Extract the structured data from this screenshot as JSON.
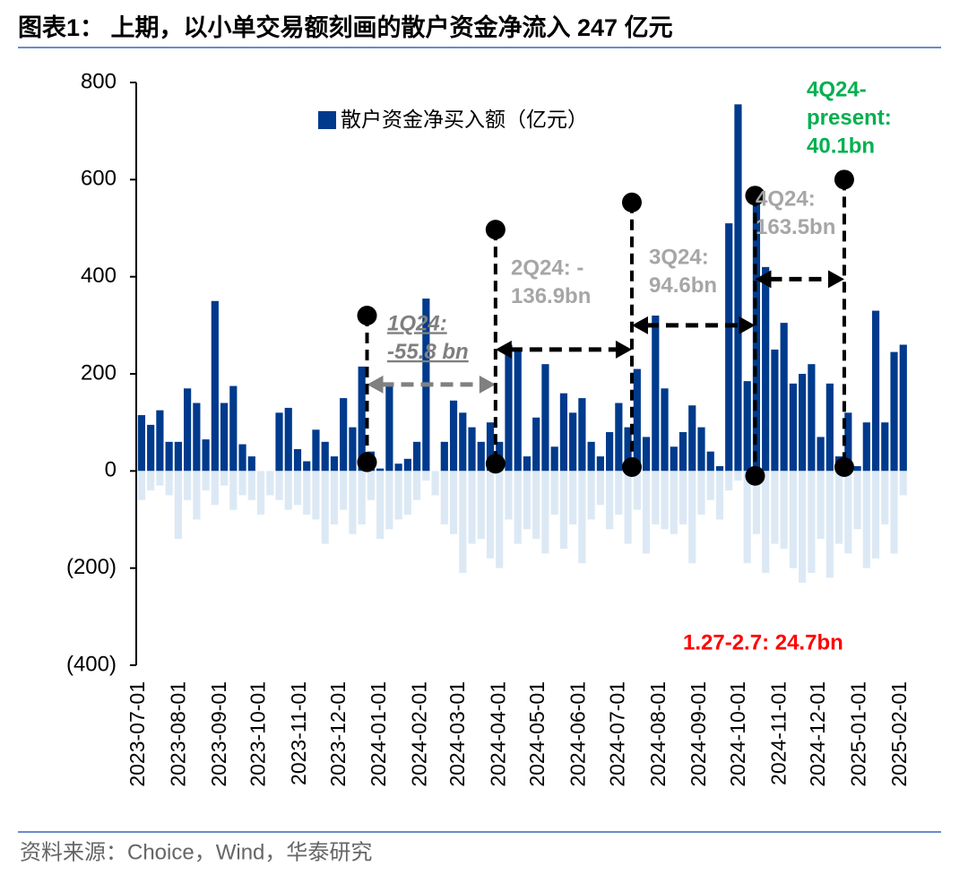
{
  "chart_data": {
    "type": "bar",
    "title": "图表1：  上期，以小单交易额刻画的散户资金净流入 247 亿元",
    "source": "资料来源：Choice，Wind，华泰研究",
    "x": [
      "2023-07-03",
      "2023-07-10",
      "2023-07-17",
      "2023-07-24",
      "2023-07-31",
      "2023-08-07",
      "2023-08-14",
      "2023-08-21",
      "2023-08-28",
      "2023-09-04",
      "2023-09-11",
      "2023-09-18",
      "2023-09-25",
      "2023-10-02",
      "2023-10-09",
      "2023-10-16",
      "2023-10-23",
      "2023-10-30",
      "2023-11-06",
      "2023-11-13",
      "2023-11-20",
      "2023-11-27",
      "2023-12-04",
      "2023-12-11",
      "2023-12-18",
      "2023-12-25",
      "2024-01-01",
      "2024-01-08",
      "2024-01-15",
      "2024-01-22",
      "2024-01-29",
      "2024-02-05",
      "2024-02-12",
      "2024-02-19",
      "2024-02-26",
      "2024-03-04",
      "2024-03-11",
      "2024-03-18",
      "2024-03-25",
      "2024-04-01",
      "2024-04-08",
      "2024-04-15",
      "2024-04-22",
      "2024-04-29",
      "2024-05-06",
      "2024-05-13",
      "2024-05-20",
      "2024-05-27",
      "2024-06-03",
      "2024-06-10",
      "2024-06-17",
      "2024-06-24",
      "2024-07-01",
      "2024-07-08",
      "2024-07-15",
      "2024-07-22",
      "2024-07-29",
      "2024-08-05",
      "2024-08-12",
      "2024-08-19",
      "2024-08-26",
      "2024-09-02",
      "2024-09-09",
      "2024-09-16",
      "2024-09-23",
      "2024-09-30",
      "2024-10-07",
      "2024-10-14",
      "2024-10-21",
      "2024-10-28",
      "2024-11-04",
      "2024-11-11",
      "2024-11-18",
      "2024-11-25",
      "2024-12-02",
      "2024-12-09",
      "2024-12-16",
      "2024-12-23",
      "2024-12-30",
      "2025-01-06",
      "2025-01-13",
      "2025-01-20",
      "2025-01-27",
      "2025-02-03"
    ],
    "series": [
      {
        "name": "散户资金净买入额（亿元）",
        "color": "#003a8c",
        "values": [
          115,
          95,
          125,
          60,
          60,
          170,
          140,
          65,
          350,
          140,
          175,
          55,
          30,
          0,
          0,
          120,
          130,
          45,
          20,
          85,
          60,
          30,
          150,
          90,
          215,
          40,
          5,
          180,
          15,
          25,
          60,
          355,
          0,
          60,
          145,
          120,
          90,
          60,
          100,
          60,
          260,
          250,
          30,
          110,
          220,
          50,
          160,
          120,
          150,
          60,
          30,
          80,
          140,
          90,
          210,
          70,
          320,
          170,
          50,
          80,
          135,
          90,
          40,
          10,
          510,
          755,
          185,
          570,
          420,
          250,
          305,
          180,
          200,
          220,
          70,
          180,
          30,
          120,
          10,
          100,
          330,
          100,
          245,
          260
        ]
      },
      {
        "color": "#dce9f5",
        "values": [
          -60,
          -40,
          -30,
          -50,
          -140,
          -60,
          -100,
          -40,
          -70,
          -30,
          -80,
          -50,
          -60,
          -90,
          -50,
          -60,
          -80,
          -70,
          -90,
          -100,
          -150,
          -110,
          -80,
          -130,
          -110,
          -60,
          -140,
          -120,
          -100,
          -90,
          -60,
          -20,
          -50,
          -110,
          -130,
          -210,
          -150,
          -140,
          -180,
          -200,
          -100,
          -150,
          -120,
          -140,
          -170,
          -90,
          -160,
          -110,
          -190,
          -100,
          -70,
          -120,
          -90,
          -150,
          -80,
          -170,
          -110,
          -120,
          -130,
          -110,
          -190,
          -90,
          -60,
          -100,
          -40,
          -20,
          -190,
          -130,
          -210,
          -150,
          -160,
          -200,
          -230,
          -210,
          -140,
          -220,
          -150,
          -170,
          -120,
          -200,
          -180,
          -110,
          -170,
          -50
        ]
      }
    ],
    "xlim": [
      "2023-07-01",
      "2025-02-10"
    ],
    "xticks": [
      "2023-07-01",
      "2023-08-01",
      "2023-09-01",
      "2023-10-01",
      "2023-11-01",
      "2023-12-01",
      "2024-01-01",
      "2024-02-01",
      "2024-03-01",
      "2024-04-01",
      "2024-05-01",
      "2024-06-01",
      "2024-07-01",
      "2024-08-01",
      "2024-09-01",
      "2024-10-01",
      "2024-11-01",
      "2024-12-01",
      "2025-01-01",
      "2025-02-01"
    ],
    "ylim": [
      -400,
      800
    ],
    "yticks": [
      {
        "value": -400,
        "label": "(400)"
      },
      {
        "value": -200,
        "label": "(200)"
      },
      0,
      200,
      400,
      600,
      800
    ],
    "legend": "top",
    "markers": [
      {
        "x": "2023-12-22",
        "y": [
          320,
          18
        ]
      },
      {
        "x": "2024-03-29",
        "y": [
          497,
          15
        ]
      },
      {
        "x": "2024-07-11",
        "y": [
          553,
          8
        ]
      },
      {
        "x": "2024-10-13",
        "y": [
          567,
          -10
        ]
      },
      {
        "x": "2024-12-20",
        "y": [
          600,
          8
        ]
      }
    ],
    "arrows": [
      {
        "x": [
          "2023-12-22",
          "2024-03-29"
        ],
        "y": 178,
        "color": "#808080"
      },
      {
        "x": [
          "2024-03-29",
          "2024-07-11"
        ],
        "y": 250,
        "color": "#000000"
      },
      {
        "x": [
          "2024-07-11",
          "2024-10-13"
        ],
        "y": 300,
        "color": "#000000"
      },
      {
        "x": [
          "2024-10-13",
          "2024-12-20"
        ],
        "y": 395,
        "color": "#000000"
      }
    ],
    "annotations": [
      {
        "text": [
          "1Q24:",
          "-55.8 bn"
        ],
        "color": "#7f7f7f"
      },
      {
        "text": [
          "2Q24: -",
          "136.9bn"
        ],
        "color": "#a6a6a6"
      },
      {
        "text": [
          "3Q24:",
          "94.6bn"
        ],
        "color": "#a6a6a6"
      },
      {
        "text": [
          "4Q24:",
          "163.5bn"
        ],
        "color": "#a6a6a6"
      },
      {
        "text": [
          "4Q24-",
          "present:",
          "40.1bn"
        ],
        "color": "#00b050"
      },
      {
        "text": [
          "1.27-2.7: 24.7bn"
        ],
        "color": "#ff0000"
      }
    ]
  }
}
